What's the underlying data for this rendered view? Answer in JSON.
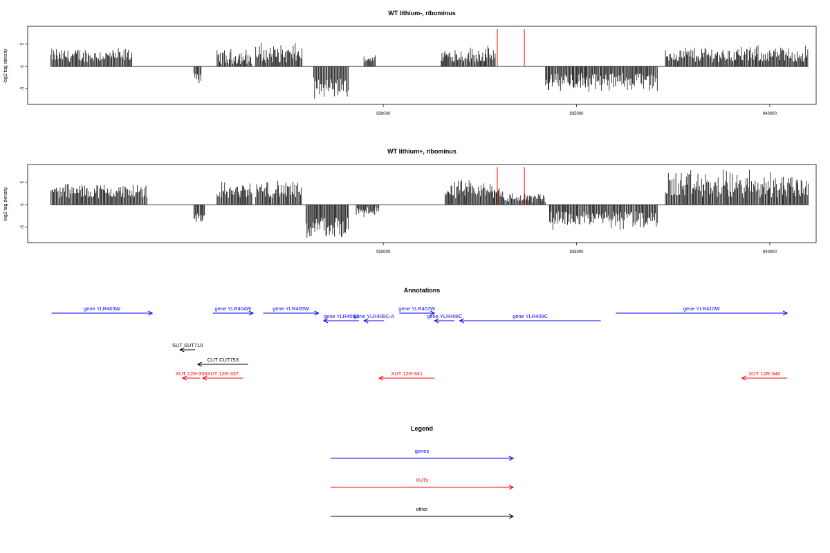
{
  "chart_data": [
    {
      "type": "bar",
      "title": "WT lithium-, ribominus",
      "ylabel": "log2 tag density",
      "xlabel": "",
      "xlim": [
        920800,
        941200
      ],
      "ylim": [
        -8.5,
        9
      ],
      "xticks": [
        930000,
        935000,
        940000
      ],
      "yticks": [
        -5,
        0,
        5
      ],
      "baseline": {
        "x0": 921400,
        "x1": 941000
      },
      "markers": [
        932950,
        933650
      ],
      "series": [
        {
          "x0": 921400,
          "x1": 923500,
          "sign": 1,
          "min": 1.0,
          "max": 4.5
        },
        {
          "x0": 925100,
          "x1": 925300,
          "sign": -1,
          "min": 1.5,
          "max": 4.0
        },
        {
          "x0": 925700,
          "x1": 926600,
          "sign": 1,
          "min": 0.5,
          "max": 4.3
        },
        {
          "x0": 926700,
          "x1": 927900,
          "sign": 1,
          "min": 0.8,
          "max": 5.8
        },
        {
          "x0": 928200,
          "x1": 929100,
          "sign": -1,
          "min": 2.5,
          "max": 7.5
        },
        {
          "x0": 929500,
          "x1": 929800,
          "sign": 1,
          "min": 1.0,
          "max": 3.0
        },
        {
          "x0": 931500,
          "x1": 932900,
          "sign": 1,
          "min": 1.0,
          "max": 4.8
        },
        {
          "x0": 934200,
          "x1": 937100,
          "sign": -1,
          "min": 1.5,
          "max": 6.2
        },
        {
          "x0": 937300,
          "x1": 941000,
          "sign": 1,
          "min": 1.0,
          "max": 5.0
        }
      ]
    },
    {
      "type": "bar",
      "title": "WT lithium+, ribominus",
      "ylabel": "log2 tag density",
      "xlabel": "",
      "xlim": [
        920800,
        941200
      ],
      "ylim": [
        -8.5,
        9
      ],
      "xticks": [
        930000,
        935000,
        940000
      ],
      "yticks": [
        -5,
        0,
        5
      ],
      "baseline": {
        "x0": 921400,
        "x1": 941000
      },
      "markers": [
        932950,
        933650
      ],
      "series": [
        {
          "x0": 921400,
          "x1": 923900,
          "sign": 1,
          "min": 1.5,
          "max": 5.2
        },
        {
          "x0": 925100,
          "x1": 925400,
          "sign": -1,
          "min": 2.0,
          "max": 4.5
        },
        {
          "x0": 925700,
          "x1": 926600,
          "sign": 1,
          "min": 1.5,
          "max": 5.5
        },
        {
          "x0": 926700,
          "x1": 927900,
          "sign": 1,
          "min": 1.5,
          "max": 6.0
        },
        {
          "x0": 928000,
          "x1": 929100,
          "sign": -1,
          "min": 2.5,
          "max": 8.0
        },
        {
          "x0": 929300,
          "x1": 929900,
          "sign": -1,
          "min": 0.5,
          "max": 3.0
        },
        {
          "x0": 931600,
          "x1": 933100,
          "sign": 1,
          "min": 1.5,
          "max": 5.8
        },
        {
          "x0": 933100,
          "x1": 934200,
          "sign": 1,
          "min": 0.5,
          "max": 3.0
        },
        {
          "x0": 934300,
          "x1": 937100,
          "sign": -1,
          "min": 1.5,
          "max": 6.2
        },
        {
          "x0": 937300,
          "x1": 941000,
          "sign": 1,
          "min": 1.5,
          "max": 8.5
        }
      ]
    }
  ],
  "annotations": {
    "title": "Annotations",
    "genes": [
      {
        "label": "gene YLR403W",
        "x0": 921000,
        "x1": 923000,
        "dir": "right",
        "row": 0
      },
      {
        "label": "gene YLR404W",
        "x0": 924200,
        "x1": 925000,
        "dir": "right",
        "row": 0
      },
      {
        "label": "gene YLR405W",
        "x0": 925200,
        "x1": 926300,
        "dir": "right",
        "row": 0
      },
      {
        "label": "gene YLR406C",
        "x0": 926400,
        "x1": 927100,
        "dir": "left",
        "row": 1
      },
      {
        "label": "gene YLR406C-A",
        "x0": 927200,
        "x1": 927600,
        "dir": "left",
        "row": 1
      },
      {
        "label": "gene YLR407W",
        "x0": 927900,
        "x1": 928600,
        "dir": "right",
        "row": 0
      },
      {
        "label": "gene YLR408C",
        "x0": 928600,
        "x1": 929000,
        "dir": "left",
        "row": 1
      },
      {
        "label": "gene YLR409C",
        "x0": 929100,
        "x1": 931900,
        "dir": "left",
        "row": 1
      },
      {
        "label": "gene YLR410W",
        "x0": 932200,
        "x1": 935600,
        "dir": "right",
        "row": 0
      }
    ],
    "other": [
      {
        "label": "SUT SUT710",
        "x0": 923550,
        "x1": 923850,
        "dir": "left",
        "row": 2
      },
      {
        "label": "CUT CUT753",
        "x0": 923900,
        "x1": 924900,
        "dir": "left",
        "row": 3
      }
    ],
    "xuts": [
      {
        "label": "XUT 12R-336",
        "x0": 923600,
        "x1": 923950,
        "dir": "left",
        "row": 4
      },
      {
        "label": "XUT 12R-337",
        "x0": 924000,
        "x1": 924800,
        "dir": "left",
        "row": 4
      },
      {
        "label": "XUT 12R-341",
        "x0": 927500,
        "x1": 928600,
        "dir": "left",
        "row": 4
      },
      {
        "label": "XUT 12R-346",
        "x0": 934700,
        "x1": 935600,
        "dir": "left",
        "row": 4
      }
    ]
  },
  "legend": {
    "title": "Legend",
    "items": [
      {
        "label": "genes",
        "color": "#0000ff"
      },
      {
        "label": "XUTs",
        "color": "#ff0000"
      },
      {
        "label": "other",
        "color": "#000000"
      }
    ]
  },
  "colors": {
    "gene": "#0000ff",
    "xut": "#ff0000",
    "other": "#000000",
    "marker": "#ff0000",
    "bar": "#000000"
  }
}
